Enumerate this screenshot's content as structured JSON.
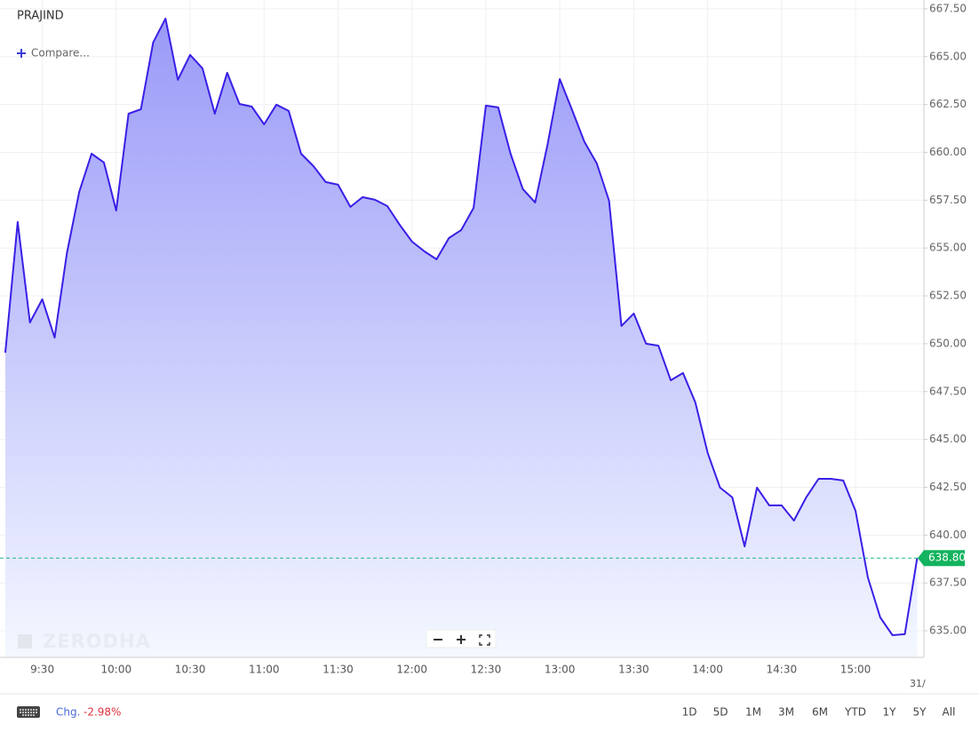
{
  "header": {
    "symbol": "PRAJIND",
    "compare": "Compare..."
  },
  "watermark": "ZERODHA",
  "chart_data": {
    "type": "area",
    "categories": [
      null,
      null,
      null,
      "9:30",
      null,
      null,
      null,
      null,
      null,
      "10:00",
      null,
      null,
      null,
      null,
      null,
      "10:30",
      null,
      null,
      null,
      null,
      null,
      "11:00",
      null,
      null,
      null,
      null,
      null,
      "11:30",
      null,
      null,
      null,
      null,
      null,
      "12:00",
      null,
      null,
      null,
      null,
      null,
      "12:30",
      null,
      null,
      null,
      null,
      null,
      "13:00",
      null,
      null,
      null,
      null,
      null,
      "13:30",
      null,
      null,
      null,
      null,
      null,
      "14:00",
      null,
      null,
      null,
      null,
      null,
      "14:30",
      null,
      null,
      null,
      null,
      null,
      "15:00",
      null,
      null,
      null,
      null,
      null
    ],
    "values": [
      649.53,
      656.36,
      651.11,
      652.32,
      650.32,
      654.73,
      657.94,
      659.93,
      659.47,
      656.96,
      662.02,
      662.25,
      665.74,
      666.99,
      663.79,
      665.09,
      664.39,
      662.02,
      664.16,
      662.53,
      662.39,
      661.46,
      662.49,
      662.16,
      659.93,
      659.28,
      658.45,
      658.31,
      657.15,
      657.66,
      657.52,
      657.19,
      656.22,
      655.34,
      654.83,
      654.41,
      655.52,
      655.94,
      657.1,
      662.44,
      662.35,
      659.93,
      658.08,
      657.38,
      660.4,
      663.83,
      662.21,
      660.54,
      659.42,
      657.47,
      650.93,
      651.58,
      650.0,
      649.9,
      648.09,
      648.47,
      646.93,
      644.29,
      642.48,
      641.97,
      639.41,
      642.48,
      641.55,
      641.55,
      640.76,
      641.97,
      642.94,
      642.94,
      642.85,
      641.27,
      637.79,
      635.7,
      634.77,
      634.82,
      638.8
    ],
    "color": "#3a1fe6",
    "ylim": [
      633.61,
      667.96
    ],
    "yticks": [
      {
        "value": 635,
        "label": "635.00"
      },
      {
        "value": 637.5,
        "label": "637.50"
      },
      {
        "value": 640,
        "label": "640.00"
      },
      {
        "value": 642.5,
        "label": "642.50"
      },
      {
        "value": 645,
        "label": "645.00"
      },
      {
        "value": 647.5,
        "label": "647.50"
      },
      {
        "value": 650,
        "label": "650.00"
      },
      {
        "value": 652.5,
        "label": "652.50"
      },
      {
        "value": 655,
        "label": "655.00"
      },
      {
        "value": 657.5,
        "label": "657.50"
      },
      {
        "value": 660,
        "label": "660.00"
      },
      {
        "value": 662.5,
        "label": "662.50"
      },
      {
        "value": 665,
        "label": "665.00"
      },
      {
        "value": 667.5,
        "label": "667.50"
      }
    ],
    "last_price": {
      "value": 638.8,
      "label": "638.80"
    },
    "date_label": "31/",
    "grid": true
  },
  "footer": {
    "chg_label": "Chg.",
    "chg_value": "-2.98%",
    "ranges": [
      "1D",
      "5D",
      "1M",
      "3M",
      "6M",
      "YTD",
      "1Y",
      "5Y",
      "All"
    ]
  }
}
